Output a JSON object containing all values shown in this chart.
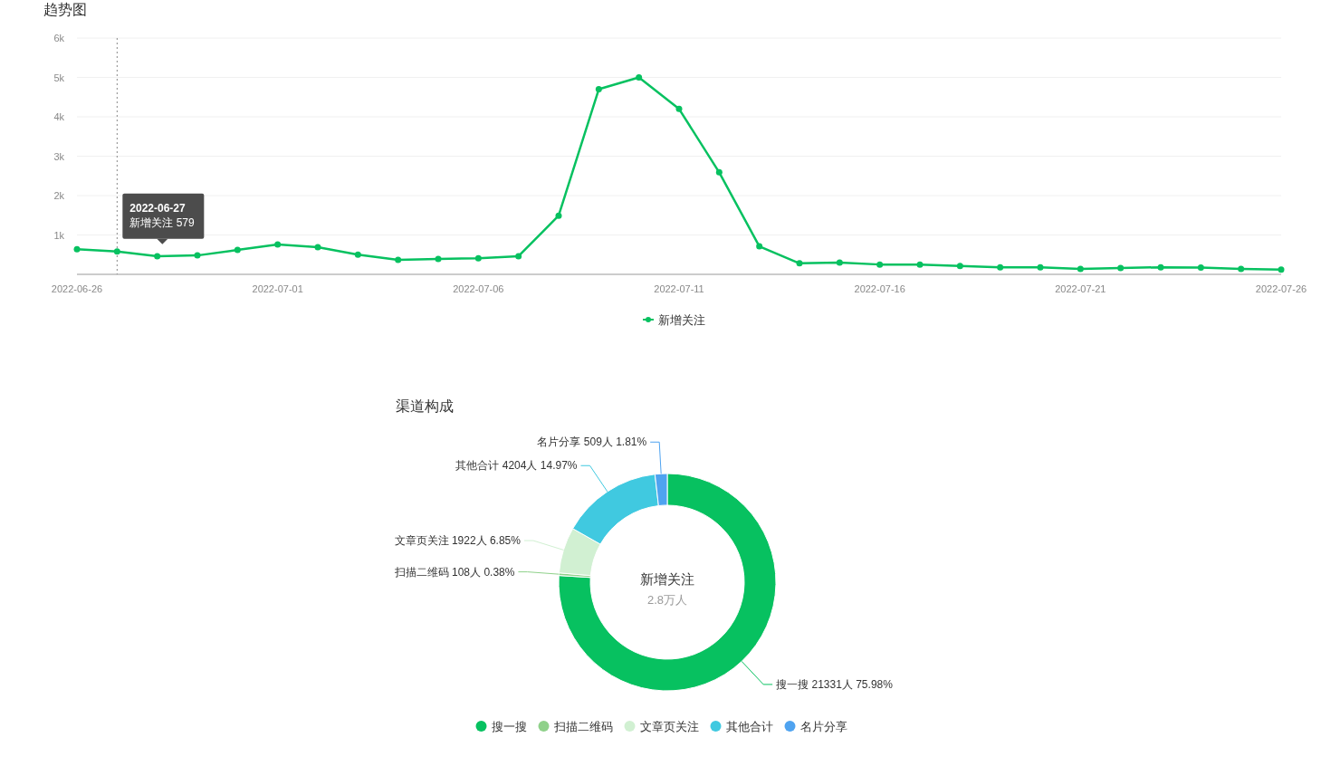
{
  "chart_data": [
    {
      "type": "line",
      "title": "趋势图",
      "x": [
        "2022-06-26",
        "2022-06-27",
        "2022-06-28",
        "2022-06-29",
        "2022-06-30",
        "2022-07-01",
        "2022-07-02",
        "2022-07-03",
        "2022-07-04",
        "2022-07-05",
        "2022-07-06",
        "2022-07-07",
        "2022-07-08",
        "2022-07-09",
        "2022-07-10",
        "2022-07-11",
        "2022-07-12",
        "2022-07-13",
        "2022-07-14",
        "2022-07-15",
        "2022-07-16",
        "2022-07-17",
        "2022-07-18",
        "2022-07-19",
        "2022-07-20",
        "2022-07-21",
        "2022-07-22",
        "2022-07-23",
        "2022-07-24",
        "2022-07-25",
        "2022-07-26"
      ],
      "series": [
        {
          "name": "新增关注",
          "color": "#07c160",
          "values": [
            640,
            579,
            460,
            480,
            620,
            760,
            690,
            500,
            370,
            390,
            410,
            460,
            1490,
            4700,
            5000,
            4200,
            2590,
            710,
            280,
            300,
            250,
            250,
            210,
            180,
            180,
            140,
            160,
            180,
            170,
            140,
            120
          ]
        }
      ],
      "xlim": [
        "2022-06-26",
        "2022-07-26"
      ],
      "xticks": [
        "2022-06-26",
        "2022-07-01",
        "2022-07-06",
        "2022-07-11",
        "2022-07-16",
        "2022-07-21",
        "2022-07-26"
      ],
      "ylim": [
        0,
        6000
      ],
      "yticks": [
        {
          "value": 1000,
          "label": "1k"
        },
        {
          "value": 2000,
          "label": "2k"
        },
        {
          "value": 3000,
          "label": "3k"
        },
        {
          "value": 4000,
          "label": "4k"
        },
        {
          "value": 5000,
          "label": "5k"
        },
        {
          "value": 6000,
          "label": "6k"
        }
      ],
      "ref_lines": [
        {
          "axis": "x",
          "value": "2022-06-27",
          "color": "#888888",
          "line_style": "dotted"
        }
      ],
      "annotations": [
        {
          "text": "2022-06-27\n新增关注 579",
          "x": "2022-06-27",
          "y": 579
        }
      ],
      "grid": "y",
      "legend": "bottom",
      "marker": "circle",
      "line_style": "solid"
    },
    {
      "type": "donut",
      "title": "渠道构成",
      "categories": [
        "搜一搜",
        "扫描二维码",
        "文章页关注",
        "其他合计",
        "名片分享"
      ],
      "values": [
        21331,
        108,
        1922,
        4204,
        509
      ],
      "colors": [
        "#07c160",
        "#8fd18a",
        "#d1f0d2",
        "#40c9e0",
        "#4fa3f0"
      ],
      "value_labels": [
        "搜一搜 21331人 75.98%",
        "扫描二维码 108人 0.38%",
        "文章页关注 1922人 6.85%",
        "其他合计 4204人 14.97%",
        "名片分享 509人 1.81%"
      ],
      "annotations": [
        "新增关注",
        "2.8万人"
      ],
      "legend": "bottom"
    }
  ]
}
